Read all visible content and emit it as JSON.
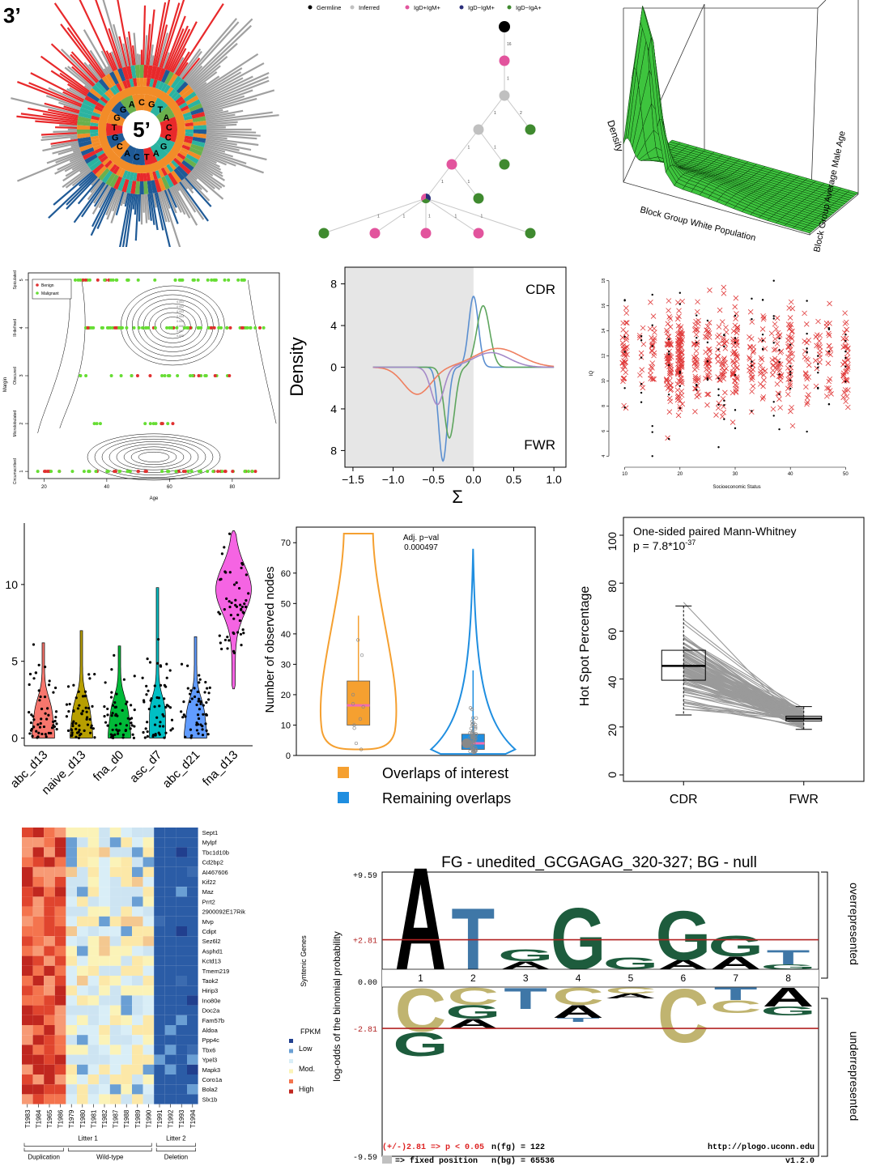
{
  "chart_data": [
    {
      "id": "circos",
      "type": "other",
      "corner_label": "3’",
      "center_label": "5’",
      "ring_letters": [
        "C",
        "G",
        "T",
        "A",
        "C",
        "C",
        "G",
        "A",
        "T",
        "C",
        "A",
        "C",
        "G",
        "T",
        "G",
        "G",
        "A"
      ],
      "colors": {
        "red": "#e8292b",
        "blue": "#1f5a96",
        "gray": "#a0a0a0",
        "orange": "#f28c28",
        "teal": "#2bb3a0",
        "green": "#6ab04c",
        "pink": "#e25fa0"
      }
    },
    {
      "id": "lineage-tree",
      "type": "tree",
      "legend": [
        {
          "name": "Germline",
          "color": "#000000"
        },
        {
          "name": "Inferred",
          "color": "#c0c0c0"
        },
        {
          "name": "IgD+IgM+",
          "color": "#e2549d"
        },
        {
          "name": "IgD−IgM+",
          "color": "#2b2e7a"
        },
        {
          "name": "IgD−IgA+",
          "color": "#3f8a2f"
        }
      ],
      "edge_labels": [
        "16",
        "1",
        "1",
        "2",
        "1",
        "1",
        "1",
        "1",
        "1",
        "1",
        "1",
        "1",
        "1",
        "1"
      ]
    },
    {
      "id": "surface-3d",
      "type": "surface",
      "zlabel": "Density",
      "xlabel": "Block Group White Population",
      "ylabel": "Block Group Average Male Age",
      "colors": {
        "surface": "#3ec43e"
      }
    },
    {
      "id": "contour-scatter",
      "type": "scatter",
      "xlabel": "Age",
      "ylabel": "Margin",
      "x_ticks": [
        "20",
        "40",
        "60",
        "80"
      ],
      "y_ticks": [
        "1",
        "2",
        "3",
        "4",
        "5"
      ],
      "y_category_labels": [
        "Circumscribed",
        "Microlobulated",
        "Obscured",
        "Ill-defined",
        "Spiculated"
      ],
      "legend": [
        "Benign",
        "Malignant"
      ],
      "xlim": [
        15,
        95
      ],
      "ylim": [
        0.85,
        5.15
      ],
      "contour_levels": [
        "0.001",
        "0.002",
        "0.003",
        "0.004",
        "0.005",
        "0.006",
        "0.007",
        "0.008"
      ],
      "colors": {
        "Benign": "#e03030",
        "Malignant": "#66dd33"
      }
    },
    {
      "id": "density-mirror",
      "type": "line",
      "xlabel": "Σ",
      "ylabel": "Density",
      "top_label": "CDR",
      "bottom_label": "FWR",
      "x_ticks": [
        "−1.5",
        "−1.0",
        "−0.5",
        "0.0",
        "0.5",
        "1.0"
      ],
      "y_ticks_top": [
        "8",
        "4",
        "0"
      ],
      "y_ticks_bottom": [
        "4",
        "8"
      ],
      "xlim": [
        -1.6,
        1.15
      ],
      "ylim": [
        -9.6,
        9.6
      ],
      "series": [
        {
          "color": "#5b8fd0",
          "top": {
            "mu": 0.0,
            "sigma": 0.06,
            "amp": 6.8
          },
          "bottom": {
            "mu": -0.38,
            "sigma": 0.055,
            "amp": 9.0
          }
        },
        {
          "color": "#5ea55e",
          "top": {
            "mu": 0.12,
            "sigma": 0.08,
            "amp": 5.9
          },
          "bottom": {
            "mu": -0.3,
            "sigma": 0.065,
            "amp": 6.8
          }
        },
        {
          "color": "#ef7f5f",
          "top": {
            "mu": 0.3,
            "sigma": 0.28,
            "amp": 1.8
          },
          "bottom": {
            "mu": -0.7,
            "sigma": 0.17,
            "amp": 2.6
          }
        },
        {
          "color": "#a58ac8",
          "top": {
            "mu": 0.22,
            "sigma": 0.22,
            "amp": 1.4
          },
          "bottom": {
            "mu": -0.45,
            "sigma": 0.08,
            "amp": 3.6
          }
        }
      ]
    },
    {
      "id": "iq-scatter",
      "type": "scatter",
      "xlabel": "Socioeconomic Status",
      "ylabel": "IQ",
      "x_ticks": [
        "10",
        "20",
        "30",
        "40",
        "50"
      ],
      "y_ticks": [
        "4",
        "6",
        "8",
        "10",
        "12",
        "14",
        "16",
        "18"
      ],
      "xlim": [
        8,
        52
      ],
      "ylim": [
        3.5,
        18.5
      ],
      "group_x": [
        10,
        13,
        15,
        18,
        20,
        23,
        25,
        27,
        28,
        30,
        33,
        35,
        37,
        38,
        40,
        43,
        45,
        47,
        50
      ],
      "colors": {
        "marker": "#e03a3a",
        "point": "#000000"
      }
    },
    {
      "id": "violins",
      "type": "violin",
      "categories": [
        "abc_d13",
        "naive_d13",
        "fna_d0",
        "asc_d7",
        "abc_d21",
        "fna_d13"
      ],
      "colors": [
        "#f7766d",
        "#b79f00",
        "#00ba38",
        "#00bfc4",
        "#619cff",
        "#f564e3"
      ],
      "y_ticks": [
        "0",
        "5",
        "10"
      ],
      "ylim": [
        -0.5,
        14
      ],
      "max_values": [
        6.2,
        7.0,
        6.0,
        9.8,
        6.6,
        13.5
      ]
    },
    {
      "id": "violin-box",
      "type": "violin",
      "ylabel": "Number of observed nodes",
      "annotation_title": "Adj. p−val",
      "annotation_value": "0.000497",
      "y_ticks": [
        "0",
        "10",
        "20",
        "30",
        "40",
        "50",
        "60",
        "70"
      ],
      "ylim": [
        0,
        74
      ],
      "legend": [
        "Overlaps of interest",
        "Remaining overlaps"
      ],
      "colors": {
        "Overlaps of interest": "#f5a030",
        "Remaining overlaps": "#1f8ee0"
      },
      "boxes": [
        {
          "name": "Overlaps of interest",
          "q1": 10,
          "median": 16.5,
          "q3": 24.5,
          "max": 73
        },
        {
          "name": "Remaining overlaps",
          "q1": 2,
          "median": 4,
          "q3": 7,
          "max": 68
        }
      ]
    },
    {
      "id": "paired-box",
      "type": "box",
      "ylabel": "Hot Spot Percentage",
      "annotation_title": "One-sided paired Mann-Whitney",
      "annotation_p": "p = 7.8*10",
      "annotation_exp": "-37",
      "categories": [
        "CDR",
        "FWR"
      ],
      "y_ticks": [
        "0",
        "20",
        "40",
        "60",
        "80",
        "100"
      ],
      "ylim": [
        0,
        100
      ],
      "boxes": [
        {
          "name": "CDR",
          "min": 25,
          "q1": 39.5,
          "median": 45.5,
          "q3": 52,
          "max": 70.5
        },
        {
          "name": "FWR",
          "min": 19,
          "q1": 22.5,
          "median": 23.5,
          "q3": 24.5,
          "max": 28.5
        }
      ]
    },
    {
      "id": "heatmap",
      "type": "heatmap",
      "row_labels": [
        "Sept1",
        "Mylpf",
        "Tbc1d10b",
        "Cd2bp2",
        "AI467606",
        "Kif22",
        "Maz",
        "Prrt2",
        "2900092E17Rik",
        "Mvp",
        "Cdipt",
        "Sez6l2",
        "Asphd1",
        "Kctd13",
        "Tmem219",
        "Taok2",
        "Hirip3",
        "Ino80e",
        "Doc2a",
        "Fam57b",
        "Aldoa",
        "Ppp4c",
        "Tbx6",
        "Ypel3",
        "Mapk3",
        "Coro1a",
        "Bola2",
        "Slx1b"
      ],
      "column_labels": [
        "T1983",
        "T1984",
        "T1965",
        "T1986",
        "T1979",
        "T1980",
        "T1981",
        "T1982",
        "T1987",
        "T1988",
        "T1989",
        "T1990",
        "T1991",
        "T1992",
        "T1993",
        "T1994"
      ],
      "row_axis_title": "Syntenic Genes",
      "groups_top": [
        {
          "name": "Litter 1",
          "from": 0,
          "to": 11
        },
        {
          "name": "Litter 2",
          "from": 12,
          "to": 15
        }
      ],
      "groups_bottom": [
        {
          "name": "Duplication",
          "from": 0,
          "to": 3
        },
        {
          "name": "Wild-type",
          "from": 4,
          "to": 11
        },
        {
          "name": "Deletion",
          "from": 12,
          "to": 15
        }
      ],
      "legend_title": "FPKM",
      "legend": [
        {
          "name": "Low",
          "color": "#6a9fd4"
        },
        {
          "name": "Mod.",
          "color": "#fbf3b8"
        },
        {
          "name": "High",
          "color": "#c0271f"
        }
      ],
      "swatch_colors": [
        "#213f8e",
        "#6a9fd4",
        "#d9eef7",
        "#fbf3b8",
        "#f4744e",
        "#c0271f"
      ]
    },
    {
      "id": "seqlogo",
      "type": "logo",
      "title": "FG - unedited_GCGAGAG_320-327; BG - null",
      "ylabel": "log-odds of the binomial probability",
      "y_ticks": [
        "+9.59",
        "+2.81",
        "0.00",
        "-2.81",
        "-9.59"
      ],
      "positions": [
        "1",
        "2",
        "3",
        "4",
        "5",
        "6",
        "7",
        "8"
      ],
      "side_top": "overrepresented",
      "side_bottom": "underrepresented",
      "footer_threshold": "(+/-)2.81 => p < 0.05",
      "footer_fixed": "=> fixed position",
      "footer_nfg": "n(fg) = 122",
      "footer_nbg": "n(bg) = 65536",
      "footer_url": "http://plogo.uconn.edu",
      "footer_version": "v1.2.0",
      "colors": {
        "A": "#000000",
        "T": "#3f77a7",
        "G": "#1d5c3d",
        "C": "#c0b470",
        "threshold": "#b22222",
        "fixed": "#c0c0c0"
      }
    }
  ]
}
